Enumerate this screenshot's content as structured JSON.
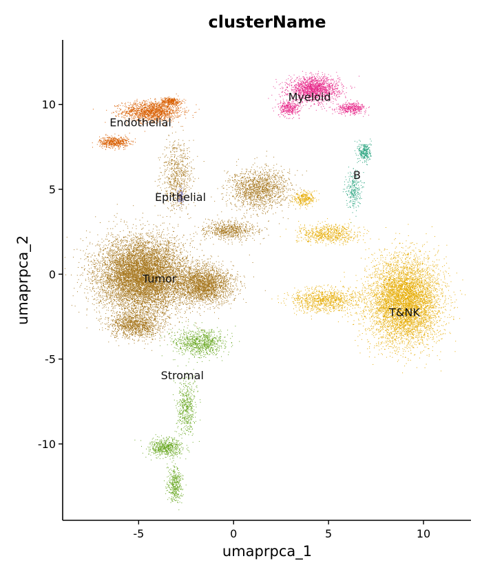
{
  "chart_data": {
    "type": "scatter",
    "title": "clusterName",
    "xlabel": "umaprpca_1",
    "ylabel": "umaprpca_2",
    "xlim": [
      -9.0,
      12.5
    ],
    "ylim": [
      -14.5,
      13.8
    ],
    "xticks": [
      -5,
      0,
      5,
      10
    ],
    "yticks": [
      -10,
      -5,
      0,
      5,
      10
    ],
    "grid": false,
    "legend": "none",
    "clusters": [
      {
        "name": "Endothelial",
        "color": "#d95f02",
        "label_at": [
          -4.9,
          8.9
        ],
        "blobs": [
          {
            "center": [
              -4.3,
              9.6
            ],
            "spread": [
              1.4,
              0.55
            ],
            "points": 1500
          },
          {
            "center": [
              -6.3,
              7.8
            ],
            "spread": [
              0.7,
              0.3
            ],
            "points": 500
          },
          {
            "center": [
              -3.3,
              10.2
            ],
            "spread": [
              0.5,
              0.2
            ],
            "points": 300
          }
        ]
      },
      {
        "name": "Myeloid",
        "color": "#e7298a",
        "label_at": [
          4.0,
          10.4
        ],
        "blobs": [
          {
            "center": [
              4.2,
              10.9
            ],
            "spread": [
              1.2,
              0.65
            ],
            "points": 1700
          },
          {
            "center": [
              6.2,
              9.8
            ],
            "spread": [
              0.7,
              0.3
            ],
            "points": 400
          },
          {
            "center": [
              2.9,
              9.8
            ],
            "spread": [
              0.5,
              0.4
            ],
            "points": 350
          }
        ]
      },
      {
        "name": "B",
        "color": "#1b9e77",
        "label_at": [
          6.5,
          5.8
        ],
        "blobs": [
          {
            "center": [
              6.9,
              7.2
            ],
            "spread": [
              0.3,
              0.55
            ],
            "points": 250
          },
          {
            "center": [
              6.3,
              5.0
            ],
            "spread": [
              0.35,
              1.0
            ],
            "points": 250
          }
        ]
      },
      {
        "name": "Epithelial",
        "color": "#7570b3",
        "label_at": [
          -2.8,
          4.5
        ],
        "blobs": [
          {
            "center": [
              -2.8,
              4.6
            ],
            "spread": [
              0.15,
              0.4
            ],
            "points": 120
          }
        ]
      },
      {
        "name": "Tumor",
        "color": "#a6761d",
        "label_at": [
          -3.9,
          -0.3
        ],
        "blobs": [
          {
            "center": [
              -4.8,
              -0.1
            ],
            "spread": [
              2.1,
              2.0
            ],
            "points": 9000
          },
          {
            "center": [
              -1.6,
              -0.6
            ],
            "spread": [
              1.4,
              1.0
            ],
            "points": 2500
          },
          {
            "center": [
              -5.2,
              -3.0
            ],
            "spread": [
              1.2,
              0.7
            ],
            "points": 1200
          },
          {
            "center": [
              1.3,
              5.0
            ],
            "spread": [
              1.4,
              1.1
            ],
            "points": 1500
          },
          {
            "center": [
              -3.0,
              5.8
            ],
            "spread": [
              0.7,
              1.8
            ],
            "points": 700
          },
          {
            "center": [
              -0.2,
              2.6
            ],
            "spread": [
              1.3,
              0.5
            ],
            "points": 700
          }
        ]
      },
      {
        "name": "Stromal",
        "color": "#66a61e",
        "label_at": [
          -2.7,
          -6.0
        ],
        "blobs": [
          {
            "center": [
              -1.8,
              -4.0
            ],
            "spread": [
              1.2,
              0.7
            ],
            "points": 900
          },
          {
            "center": [
              -2.5,
              -7.8
            ],
            "spread": [
              0.45,
              1.5
            ],
            "points": 500
          },
          {
            "center": [
              -3.6,
              -10.2
            ],
            "spread": [
              0.8,
              0.5
            ],
            "points": 600
          },
          {
            "center": [
              -3.1,
              -12.4
            ],
            "spread": [
              0.35,
              0.9
            ],
            "points": 400
          }
        ]
      },
      {
        "name": "T&NK",
        "color": "#e6ab02",
        "label_at": [
          9.0,
          -2.3
        ],
        "blobs": [
          {
            "center": [
              9.0,
              -1.6
            ],
            "spread": [
              1.7,
              2.3
            ],
            "points": 6000
          },
          {
            "center": [
              4.8,
              -1.5
            ],
            "spread": [
              1.6,
              0.6
            ],
            "points": 1000
          },
          {
            "center": [
              5.0,
              2.4
            ],
            "spread": [
              1.4,
              0.5
            ],
            "points": 700
          },
          {
            "center": [
              3.7,
              4.5
            ],
            "spread": [
              0.5,
              0.4
            ],
            "points": 300
          }
        ]
      }
    ]
  }
}
